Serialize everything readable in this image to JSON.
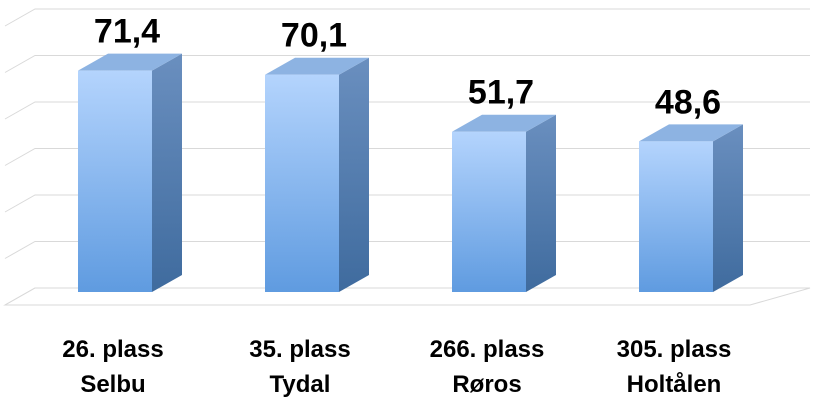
{
  "chart_data": {
    "type": "bar3d",
    "categories": [
      [
        "26. plass",
        "Selbu"
      ],
      [
        "35. plass",
        "Tydal"
      ],
      [
        "266. plass",
        "Røros"
      ],
      [
        "305. plass",
        "Holtålen"
      ]
    ],
    "values": [
      71.4,
      70.1,
      51.7,
      48.6
    ],
    "value_labels": [
      "71,4",
      "70,1",
      "51,7",
      "48,6"
    ],
    "color": "#6fa6ec",
    "ylim": [
      0,
      90
    ],
    "yticks": [
      0,
      15,
      30,
      45,
      60,
      75,
      90
    ],
    "grid": true,
    "show_tick_labels": false
  }
}
